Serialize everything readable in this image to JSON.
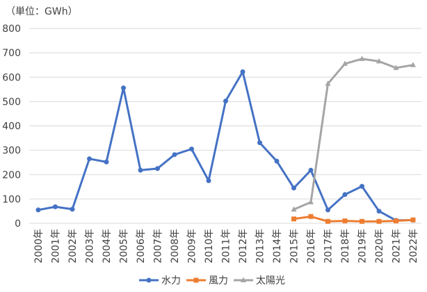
{
  "unit_label": "（単位：GWh）",
  "chart_data": {
    "type": "line",
    "title": "",
    "xlabel": "",
    "ylabel": "",
    "unit": "（単位：GWh）",
    "ylim": [
      0,
      800
    ],
    "yticks": [
      0,
      100,
      200,
      300,
      400,
      500,
      600,
      700,
      800
    ],
    "grid": true,
    "legend": "bottom",
    "categories": [
      "2000年",
      "2001年",
      "2002年",
      "2003年",
      "2004年",
      "2005年",
      "2006年",
      "2007年",
      "2008年",
      "2009年",
      "2010年",
      "2011年",
      "2012年",
      "2013年",
      "2014年",
      "2015年",
      "2016年",
      "2017年",
      "2018年",
      "2019年",
      "2020年",
      "2021年",
      "2022年"
    ],
    "series": [
      {
        "name": "水力",
        "color": "#4472C4",
        "marker": "circle",
        "values": [
          55,
          68,
          58,
          265,
          252,
          556,
          218,
          225,
          282,
          305,
          175,
          502,
          622,
          331,
          255,
          145,
          218,
          55,
          118,
          152,
          50,
          12,
          13
        ]
      },
      {
        "name": "風力",
        "color": "#ED7D31",
        "marker": "square",
        "values": [
          null,
          null,
          null,
          null,
          null,
          null,
          null,
          null,
          null,
          null,
          null,
          null,
          null,
          null,
          null,
          18,
          28,
          8,
          10,
          8,
          8,
          10,
          14
        ]
      },
      {
        "name": "太陽光",
        "color": "#A5A5A5",
        "marker": "triangle",
        "values": [
          null,
          null,
          null,
          null,
          null,
          null,
          null,
          null,
          null,
          null,
          null,
          null,
          null,
          null,
          null,
          57,
          87,
          573,
          655,
          675,
          665,
          638,
          650
        ]
      }
    ]
  }
}
